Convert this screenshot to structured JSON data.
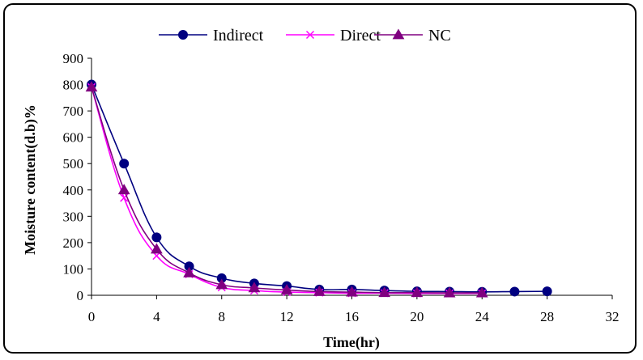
{
  "chart_data": {
    "type": "line",
    "title": "",
    "xlabel": "Time(hr)",
    "ylabel": "Moisture content(d.b)%",
    "xlim": [
      0,
      32
    ],
    "ylim": [
      0,
      900
    ],
    "xticks": [
      0,
      4,
      8,
      12,
      16,
      20,
      24,
      28,
      32
    ],
    "yticks": [
      0,
      100,
      200,
      300,
      400,
      500,
      600,
      700,
      800,
      900
    ],
    "grid": false,
    "legend_position": "top",
    "series": [
      {
        "name": "Indirect",
        "color": "#000080",
        "marker": "circle",
        "x": [
          0,
          2,
          4,
          6,
          8,
          10,
          12,
          14,
          16,
          18,
          20,
          22,
          24,
          26,
          28
        ],
        "y": [
          800,
          500,
          220,
          110,
          65,
          45,
          35,
          22,
          22,
          18,
          15,
          14,
          13,
          14,
          15
        ]
      },
      {
        "name": "Direct",
        "color": "#ff00ff",
        "marker": "x",
        "x": [
          0,
          2,
          4,
          6,
          8,
          10,
          12,
          14,
          16,
          18,
          20,
          22,
          24
        ],
        "y": [
          790,
          370,
          150,
          80,
          30,
          18,
          12,
          10,
          8,
          8,
          7,
          7,
          7
        ]
      },
      {
        "name": "NC",
        "color": "#800080",
        "marker": "triangle",
        "x": [
          0,
          2,
          4,
          6,
          8,
          10,
          12,
          14,
          16,
          18,
          20,
          22,
          24
        ],
        "y": [
          790,
          400,
          175,
          85,
          40,
          28,
          20,
          14,
          12,
          10,
          10,
          9,
          9
        ]
      }
    ]
  }
}
